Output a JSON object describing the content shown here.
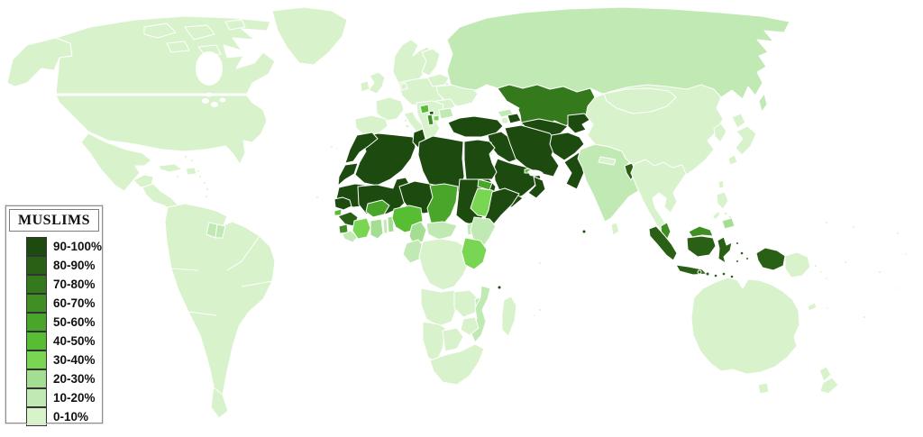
{
  "legend": {
    "title": "MUSLIMS",
    "entries": [
      {
        "label": "90-100%",
        "color": "#1d4a0e"
      },
      {
        "label": "80-90%",
        "color": "#2a6015"
      },
      {
        "label": "70-80%",
        "color": "#35791d"
      },
      {
        "label": "60-70%",
        "color": "#408f24"
      },
      {
        "label": "50-60%",
        "color": "#4aa52b"
      },
      {
        "label": "40-50%",
        "color": "#57bd33"
      },
      {
        "label": "30-40%",
        "color": "#79d653"
      },
      {
        "label": "20-30%",
        "color": "#a4de92"
      },
      {
        "label": "10-20%",
        "color": "#c1e9b3"
      },
      {
        "label": "0-10%",
        "color": "#d8f2cc"
      }
    ]
  },
  "colors": {
    "ocean": "#ffffff",
    "country_border": "#ffffff"
  },
  "regions": {
    "canada": "0-10%",
    "united-states": "0-10%",
    "greenland": "0-10%",
    "mexico": "0-10%",
    "central-america": "0-10%",
    "cuba": "0-10%",
    "hispaniola": "0-10%",
    "caribbean-islands": "0-10%",
    "south-america": "0-10%",
    "guyana": "10-20%",
    "suriname": "10-20%",
    "iceland": "0-10%",
    "scandinavia": "0-10%",
    "finland": "0-10%",
    "united-kingdom": "0-10%",
    "ireland": "0-10%",
    "france": "0-10%",
    "iberia": "0-10%",
    "central-europe": "0-10%",
    "italy": "0-10%",
    "balkans": "0-10%",
    "romania": "0-10%",
    "ukraine": "0-10%",
    "belarus-baltics": "0-10%",
    "bulgaria": "10-20%",
    "bosnia": "40-50%",
    "kosovo": "90-100%",
    "albania": "60-70%",
    "macedonia": "30-40%",
    "russia": "10-20%",
    "georgia": "10-20%",
    "armenia": "0-10%",
    "azerbaijan": "90-100%",
    "turkey": "90-100%",
    "iraq-syria-jordan": "90-100%",
    "israel": "10-20%",
    "saudi-arabia": "90-100%",
    "yemen": "90-100%",
    "oman": "90-100%",
    "united-arab-emirates": "40-50%",
    "iran": "90-100%",
    "afghanistan": "90-100%",
    "pakistan": "90-100%",
    "kazakhstan": "70-80%",
    "uzbekistan": "90-100%",
    "turkmenistan": "90-100%",
    "kyrgyzstan-tajikistan": "90-100%",
    "india": "10-20%",
    "nepal": "0-10%",
    "bangladesh": "80-90%",
    "sri-lanka": "0-10%",
    "maldives": "90-100%",
    "china": "0-10%",
    "mongolia": "0-10%",
    "korea": "0-10%",
    "japan": "0-10%",
    "taiwan": "0-10%",
    "indochina": "0-10%",
    "malaysia": "60-70%",
    "indonesia": "80-90%",
    "philippines": "0-10%",
    "southern-philippines": "20-30%",
    "papua-new-guinea": "0-10%",
    "solomon-islands": "0-10%",
    "australia": "0-10%",
    "new-zealand": "0-10%",
    "new-caledonia": "0-10%",
    "pacific-islands": "0-10%",
    "morocco": "90-100%",
    "western-sahara": "90-100%",
    "mauritania": "90-100%",
    "senegal": "90-100%",
    "guinea-bissau": "40-50%",
    "guinea": "80-90%",
    "sierra-leone": "60-70%",
    "liberia": "10-20%",
    "ivory-coast": "30-40%",
    "burkina-faso": "50-60%",
    "ghana": "20-30%",
    "togo": "10-20%",
    "benin": "20-30%",
    "nigeria": "40-50%",
    "mali": "90-100%",
    "niger": "90-100%",
    "algeria": "90-100%",
    "tunisia": "90-100%",
    "libya": "90-100%",
    "egypt": "90-100%",
    "sudan": "90-100%",
    "chad": "50-60%",
    "eritrea": "50-60%",
    "ethiopia": "30-40%",
    "somalia": "90-100%",
    "kenya": "10-20%",
    "uganda": "10-20%",
    "tanzania": "30-40%",
    "cameroon": "20-30%",
    "central-african-republic": "10-20%",
    "congo-gabon": "10-20%",
    "dr-congo": "0-10%",
    "angola": "0-10%",
    "zambia": "0-10%",
    "malawi": "10-20%",
    "mozambique": "10-20%",
    "zimbabwe": "0-10%",
    "namibia": "0-10%",
    "botswana": "0-10%",
    "south-africa": "0-10%",
    "madagascar": "0-10%",
    "comoros": "90-100%",
    "seychelles": "0-10%",
    "mauritius": "0-10%",
    "cape-verde": "0-10%",
    "canary-islands": "0-10%"
  }
}
